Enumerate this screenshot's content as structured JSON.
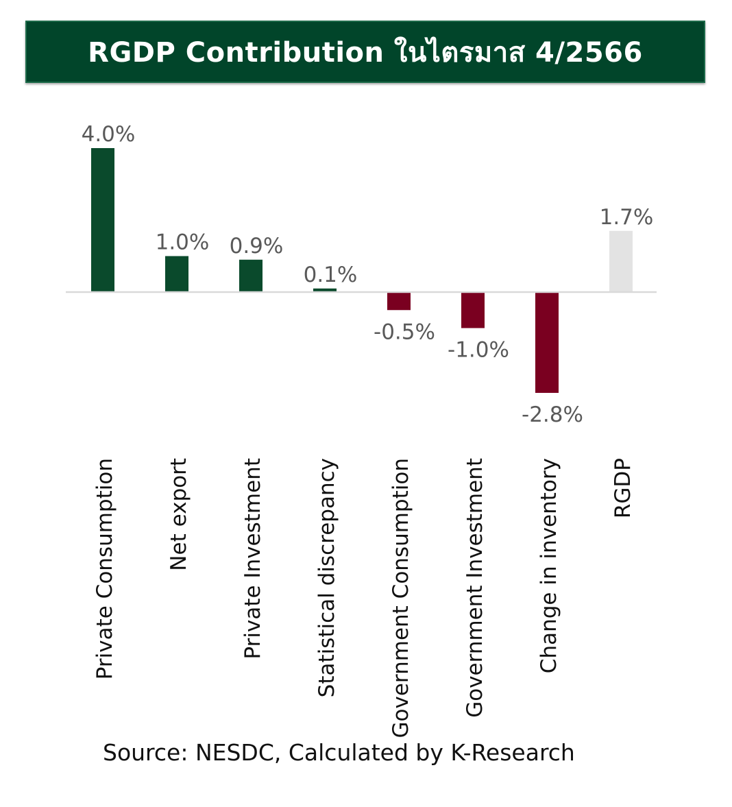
{
  "title": "RGDP Contribution ในไตรมาส 4/2566",
  "source": "Source: NESDC, Calculated by K-Research",
  "colors": {
    "banner": "#01452a",
    "positive": "#0a4a2c",
    "negative": "#7a0020",
    "total": "#e3e3e3",
    "axis": "#d9d9d9",
    "label": "#595959"
  },
  "chart_data": {
    "type": "bar",
    "title": "RGDP Contribution ในไตรมาส 4/2566",
    "categories": [
      "Private Consumption",
      "Net export",
      "Private Investment",
      "Statistical discrepancy",
      "Government Consumption",
      "Government Investment",
      "Change in inventory",
      "RGDP"
    ],
    "values": [
      4.0,
      1.0,
      0.9,
      0.1,
      -0.5,
      -1.0,
      -2.8,
      1.7
    ],
    "labels": [
      "4.0%",
      "1.0%",
      "0.9%",
      "0.1%",
      "-0.5%",
      "-1.0%",
      "-2.8%",
      "1.7%"
    ],
    "kinds": [
      "positive",
      "positive",
      "positive",
      "positive",
      "negative",
      "negative",
      "negative",
      "total"
    ],
    "xlabel": "",
    "ylabel": "",
    "grid": false,
    "legend": "none"
  }
}
